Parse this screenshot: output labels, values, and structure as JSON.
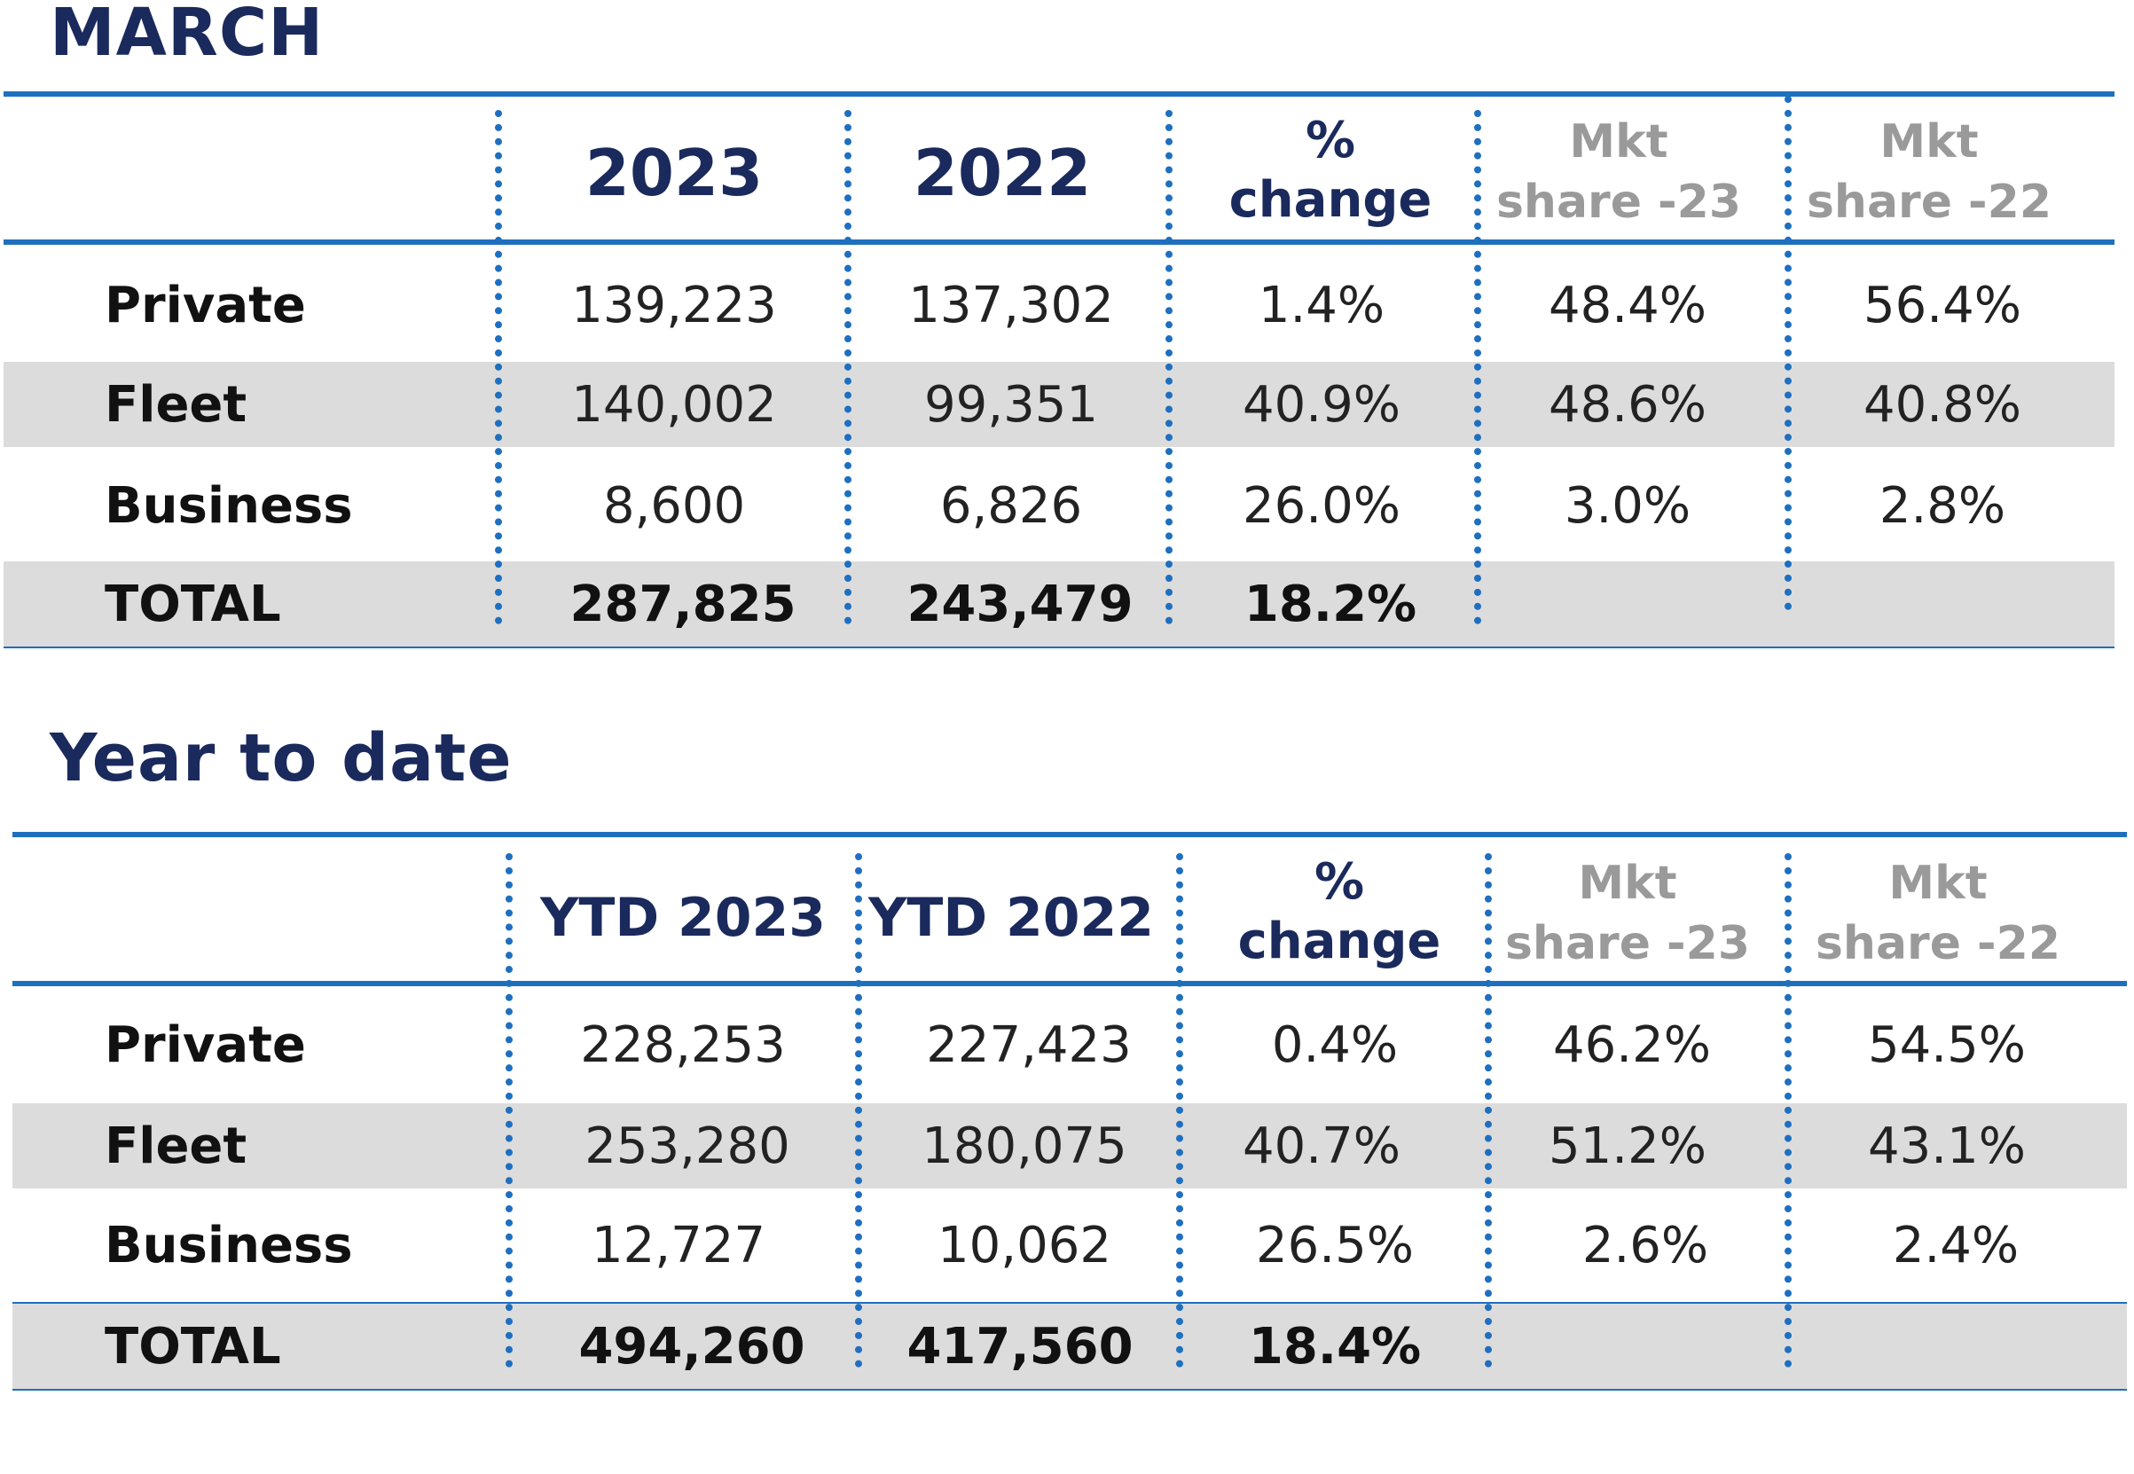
{
  "sections": [
    {
      "title": "MARCH",
      "headers": {
        "col1": "2023",
        "col2": "2022",
        "pct_line1": "%",
        "pct_line2": "change",
        "mkt23_line1": "Mkt",
        "mkt23_line2": "share -23",
        "mkt22_line1": "Mkt",
        "mkt22_line2": "share -22"
      },
      "rows": [
        {
          "label": "Private",
          "v1": "139,223",
          "v2": "137,302",
          "pct": "1.4%",
          "mkt23": "48.4%",
          "mkt22": "56.4%"
        },
        {
          "label": "Fleet",
          "v1": "140,002",
          "v2": "99,351",
          "pct": "40.9%",
          "mkt23": "48.6%",
          "mkt22": "40.8%"
        },
        {
          "label": "Business",
          "v1": "8,600",
          "v2": "6,826",
          "pct": "26.0%",
          "mkt23": "3.0%",
          "mkt22": "2.8%"
        }
      ],
      "total": {
        "label": "TOTAL",
        "v1": "287,825",
        "v2": "243,479",
        "pct": "18.2%"
      }
    },
    {
      "title": "Year to date",
      "headers": {
        "col1": "YTD 2023",
        "col2": "YTD 2022",
        "pct_line1": "%",
        "pct_line2": "change",
        "mkt23_line1": "Mkt",
        "mkt23_line2": "share -23",
        "mkt22_line1": "Mkt",
        "mkt22_line2": "share -22"
      },
      "rows": [
        {
          "label": "Private",
          "v1": "228,253",
          "v2": "227,423",
          "pct": "0.4%",
          "mkt23": "46.2%",
          "mkt22": "54.5%"
        },
        {
          "label": "Fleet",
          "v1": "253,280",
          "v2": "180,075",
          "pct": "40.7%",
          "mkt23": "51.2%",
          "mkt22": "43.1%"
        },
        {
          "label": "Business",
          "v1": "12,727",
          "v2": "10,062",
          "pct": "26.5%",
          "mkt23": "2.6%",
          "mkt22": "2.4%"
        }
      ],
      "total": {
        "label": "TOTAL",
        "v1": "494,260",
        "v2": "417,560",
        "pct": "18.4%"
      }
    }
  ]
}
